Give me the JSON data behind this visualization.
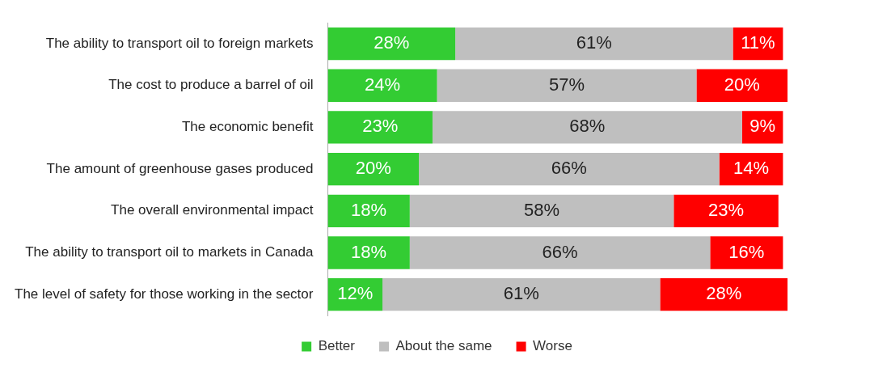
{
  "chart_data": {
    "type": "bar",
    "orientation": "horizontal",
    "stacked": true,
    "legend": "bottom",
    "grid": false,
    "tick_labels": "y",
    "categories": [
      "The ability to transport oil to foreign markets",
      "The cost to produce a barrel of oil",
      "The economic benefit",
      "The amount of greenhouse gases produced",
      "The overall environmental impact",
      "The ability to transport oil to markets in Canada",
      "The level of safety for those working in the sector"
    ],
    "series": [
      {
        "name": "Better",
        "color": "#33cc33",
        "values": [
          28,
          24,
          23,
          20,
          18,
          18,
          12
        ],
        "value_labels": [
          "28%",
          "24%",
          "23%",
          "20%",
          "18%",
          "18%",
          "12%"
        ]
      },
      {
        "name": "About the same",
        "color": "#bfbfbf",
        "values": [
          61,
          57,
          68,
          66,
          58,
          66,
          61
        ],
        "value_labels": [
          "61%",
          "57%",
          "68%",
          "66%",
          "58%",
          "66%",
          "61%"
        ]
      },
      {
        "name": "Worse",
        "color": "#ff0000",
        "values": [
          11,
          20,
          9,
          14,
          23,
          16,
          28
        ],
        "value_labels": [
          "11%",
          "20%",
          "9%",
          "14%",
          "23%",
          "16%",
          "28%"
        ]
      }
    ]
  }
}
